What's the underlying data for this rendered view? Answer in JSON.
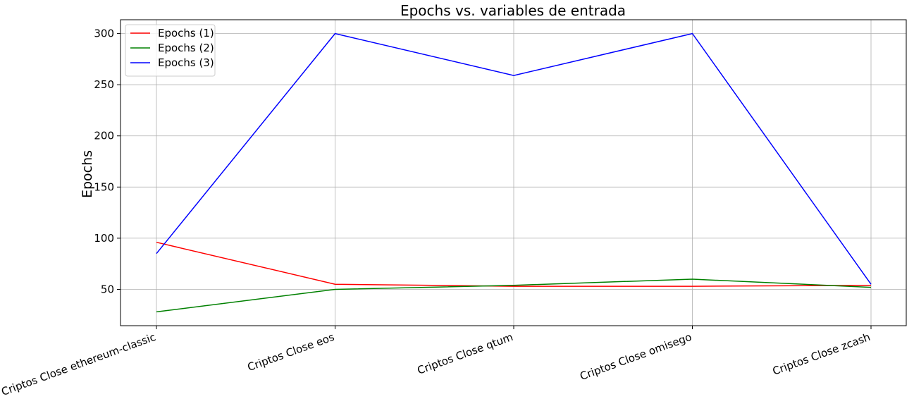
{
  "chart_data": {
    "type": "line",
    "title": "Epochs vs. variables de entrada",
    "xlabel": "",
    "ylabel": "Epochs",
    "categories": [
      "Criptos Close ethereum-classic",
      "Criptos Close eos",
      "Criptos Close qtum",
      "Criptos Close omisego",
      "Criptos Close zcash"
    ],
    "series": [
      {
        "name": "Epochs (1)",
        "color": "#ff0000",
        "values": [
          96,
          55,
          53,
          53,
          54
        ]
      },
      {
        "name": "Epochs (2)",
        "color": "#008000",
        "values": [
          28,
          50,
          54,
          60,
          52
        ]
      },
      {
        "name": "Epochs (3)",
        "color": "#0000ff",
        "values": [
          85,
          300,
          259,
          300,
          55
        ]
      }
    ],
    "ylim": [
      14.5,
      313.5
    ],
    "yticks": [
      50,
      100,
      150,
      200,
      250,
      300
    ],
    "grid": true,
    "legend_position": "top-left"
  }
}
